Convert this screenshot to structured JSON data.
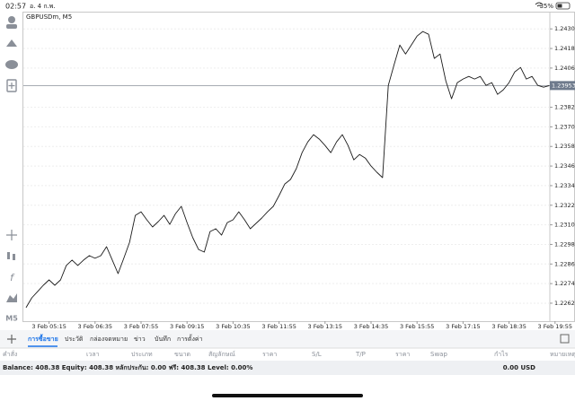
{
  "status_bar": {
    "time": "02:57",
    "date": "อ. 4 ก.พ.",
    "battery": "35%"
  },
  "toolbar": {
    "timeframe": "M5"
  },
  "chart_data": {
    "type": "line",
    "title": "GBPUSDm, M5",
    "color": "#1a1a1a",
    "grid": true,
    "categories": [
      null,
      null,
      null,
      null,
      "3 Feb 05:15",
      null,
      null,
      null,
      null,
      null,
      null,
      null,
      "3 Feb 06:35",
      null,
      null,
      null,
      null,
      null,
      null,
      null,
      "3 Feb 07:55",
      null,
      null,
      null,
      null,
      null,
      null,
      null,
      "3 Feb 09:15",
      null,
      null,
      null,
      null,
      null,
      null,
      null,
      "3 Feb 10:35",
      null,
      null,
      null,
      null,
      null,
      null,
      null,
      "3 Feb 11:55",
      null,
      null,
      null,
      null,
      null,
      null,
      null,
      "3 Feb 13:15",
      null,
      null,
      null,
      null,
      null,
      null,
      null,
      "3 Feb 14:35",
      null,
      null,
      null,
      null,
      null,
      null,
      null,
      "3 Feb 15:55",
      null,
      null,
      null,
      null,
      null,
      null,
      null,
      "3 Feb 17:15",
      null,
      null,
      null,
      null,
      null,
      null,
      null,
      "3 Feb 18:35",
      null,
      null,
      null,
      null,
      null,
      null,
      null,
      "3 Feb 19:55"
    ],
    "values": [
      1.22593,
      1.22653,
      1.22691,
      1.2273,
      1.22763,
      1.2273,
      1.22763,
      1.22851,
      1.22884,
      1.22851,
      1.22884,
      1.22911,
      1.22895,
      1.22911,
      1.22966,
      1.22884,
      1.22801,
      1.22895,
      1.22993,
      1.23158,
      1.2318,
      1.23131,
      1.23087,
      1.2312,
      1.23158,
      1.23103,
      1.23169,
      1.23213,
      1.23114,
      1.23021,
      1.22949,
      1.22933,
      1.23059,
      1.23076,
      1.23037,
      1.23114,
      1.23131,
      1.2318,
      1.23131,
      1.23076,
      1.23109,
      1.23142,
      1.2318,
      1.23213,
      1.23279,
      1.2335,
      1.23378,
      1.23444,
      1.23542,
      1.23608,
      1.23652,
      1.23625,
      1.23586,
      1.23542,
      1.23608,
      1.23652,
      1.23586,
      1.23498,
      1.23531,
      1.23509,
      1.2346,
      1.23422,
      1.23389,
      1.23954,
      1.2408,
      1.24201,
      1.24146,
      1.24201,
      1.24256,
      1.24284,
      1.24267,
      1.24119,
      1.24146,
      1.23982,
      1.23872,
      1.23971,
      1.23993,
      1.24009,
      1.23993,
      1.24009,
      1.23954,
      1.23971,
      1.23899,
      1.23927,
      1.23971,
      1.24037,
      1.24064,
      1.23993,
      1.24009,
      1.23954,
      1.23943,
      1.23953,
      null
    ],
    "ylim": [
      1.2251,
      1.244
    ],
    "yticks": [
      {
        "value": 1.2262,
        "label": "1.22620"
      },
      {
        "value": 1.2274,
        "label": "1.22740"
      },
      {
        "value": 1.2286,
        "label": "1.22860"
      },
      {
        "value": 1.2298,
        "label": "1.22980"
      },
      {
        "value": 1.231,
        "label": "1.23100"
      },
      {
        "value": 1.2322,
        "label": "1.23220"
      },
      {
        "value": 1.2334,
        "label": "1.23340"
      },
      {
        "value": 1.2346,
        "label": "1.23460"
      },
      {
        "value": 1.2358,
        "label": "1.23580"
      },
      {
        "value": 1.237,
        "label": "1.23700"
      },
      {
        "value": 1.2382,
        "label": "1.23820"
      },
      {
        "value": 1.2406,
        "label": "1.24060"
      },
      {
        "value": 1.2418,
        "label": "1.24180"
      },
      {
        "value": 1.243,
        "label": "1.24300"
      }
    ],
    "price_line": {
      "value": 1.23953,
      "label": "1.23953"
    }
  },
  "tabs": [
    "การซื้อขาย",
    "ประวัติ",
    "กล่องจดหมาย",
    "ข่าว",
    "บันทึก",
    "การตั้งค่า"
  ],
  "table": {
    "columns": [
      "คำสั่ง",
      "เวลา",
      "ประเภท",
      "ขนาด",
      "สัญลักษณ์",
      "ราคา",
      "S/L",
      "T/P",
      "ราคา",
      "Swap",
      "กำไร",
      "หมายเหตุ"
    ]
  },
  "account": {
    "summary": "Balance: 408.38 Equity: 408.38 หลักประกัน: 0.00 ฟรี: 408.38 Level: 0.00%",
    "total": "0.00 USD"
  }
}
